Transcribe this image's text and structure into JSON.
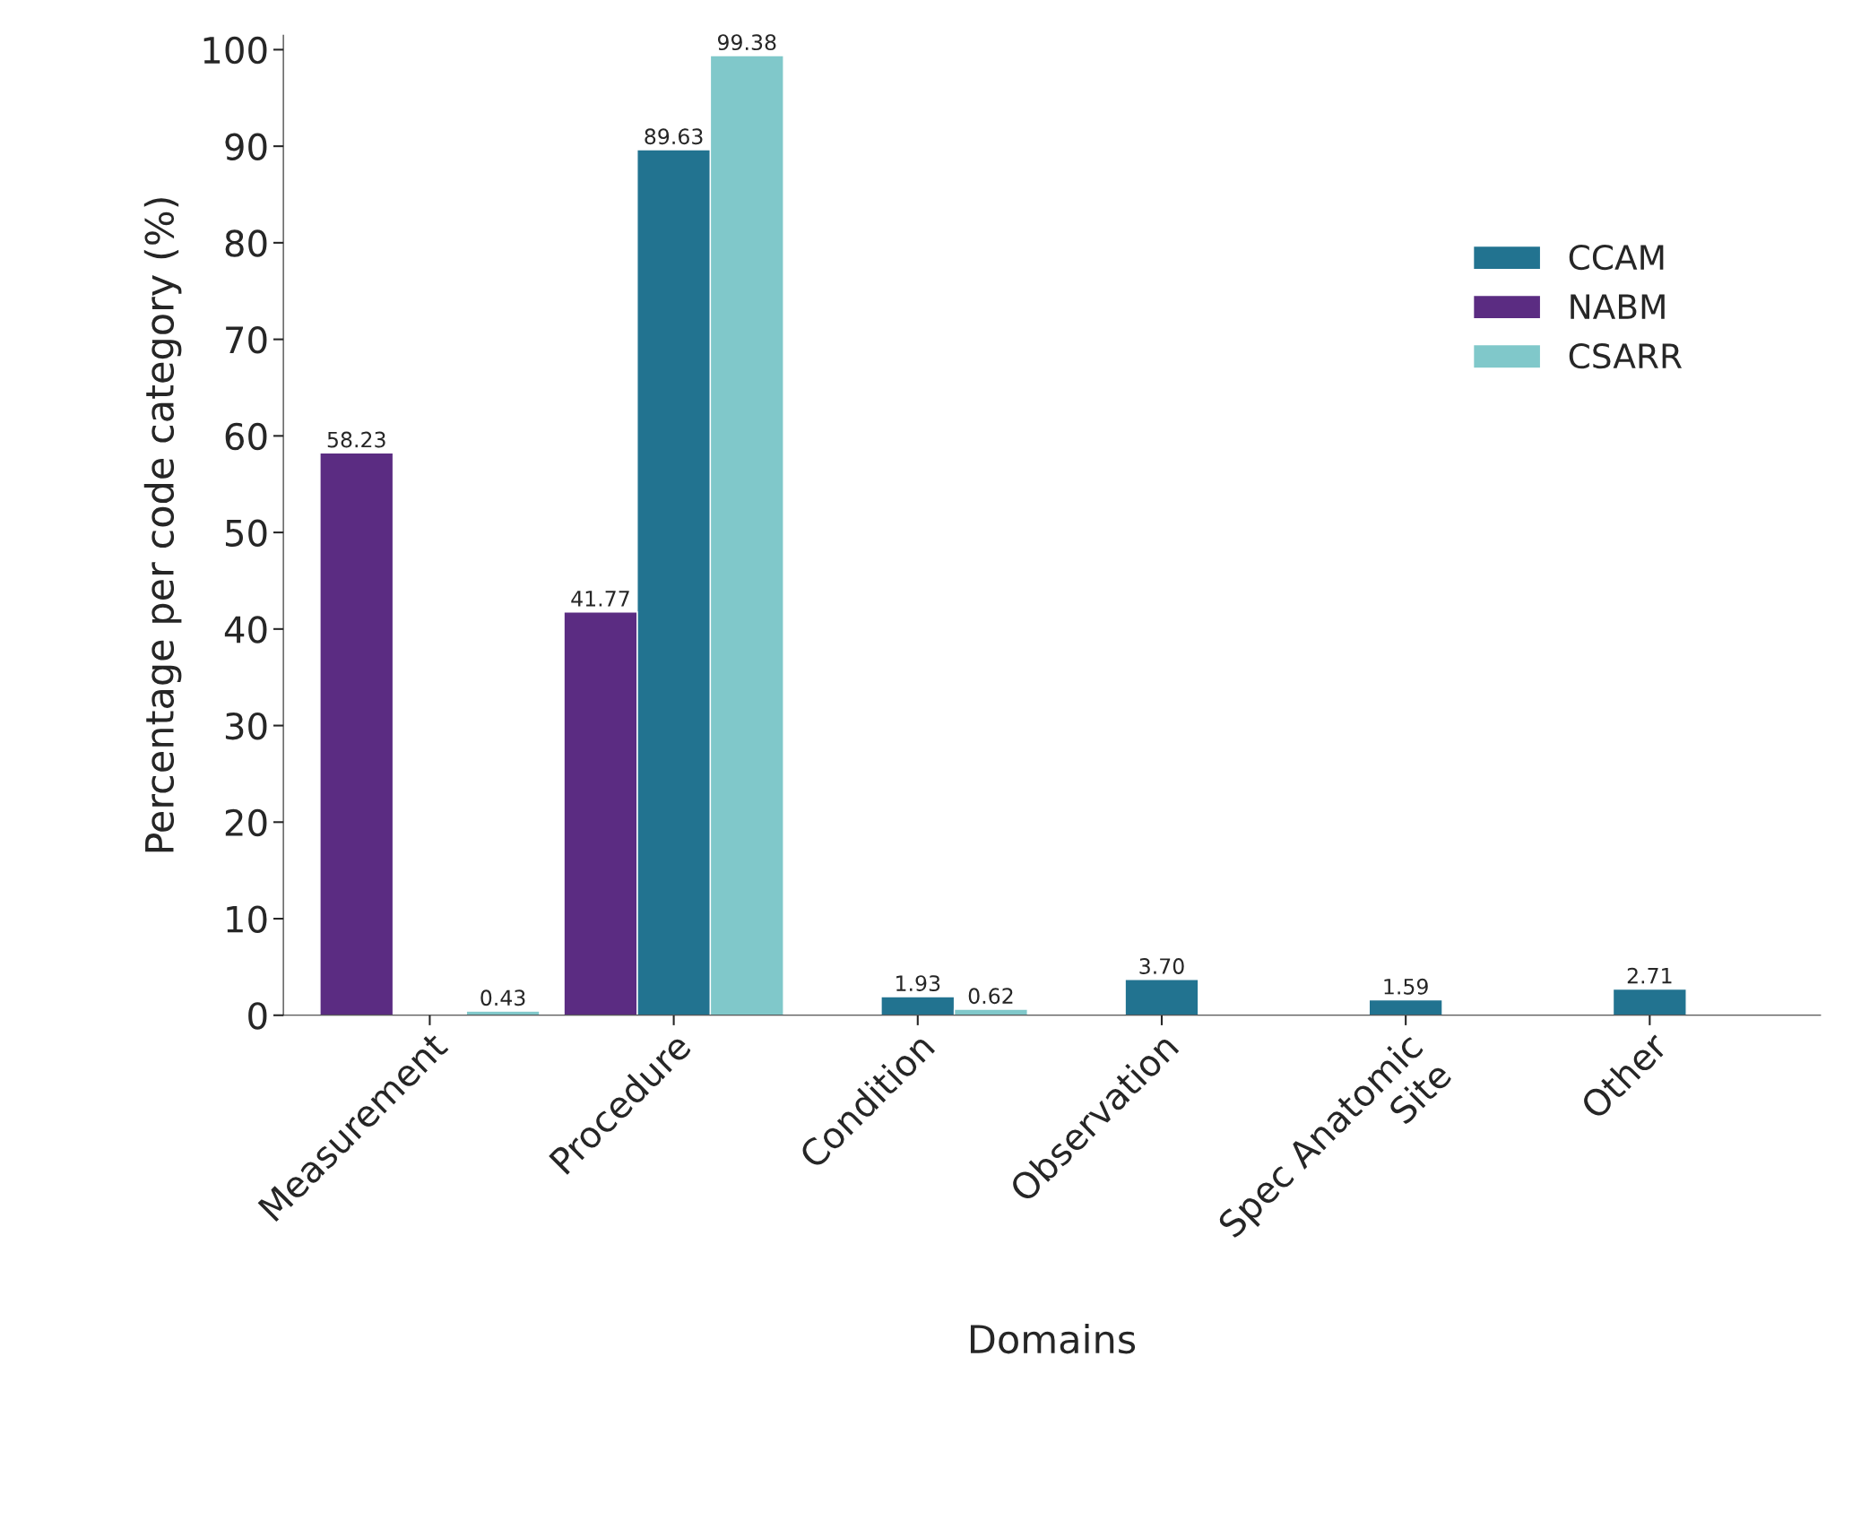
{
  "chart_data": {
    "type": "bar",
    "xlabel": "Domains",
    "ylabel": "Percentage per code category (%)",
    "categories": [
      "Measurement",
      "Procedure",
      "Condition",
      "Observation",
      "Spec Anatomic\nSite",
      "Other"
    ],
    "series": [
      {
        "name": "CCAM",
        "color": "#227390",
        "values": [
          null,
          89.63,
          1.93,
          3.7,
          1.59,
          2.71
        ],
        "value_labels": [
          null,
          "89.63",
          "1.93",
          "3.70",
          "1.59",
          "2.71"
        ]
      },
      {
        "name": "NABM",
        "color": "#5b2c82",
        "values": [
          58.23,
          41.77,
          null,
          null,
          null,
          null
        ],
        "value_labels": [
          "58.23",
          "41.77",
          null,
          null,
          null,
          null
        ]
      },
      {
        "name": "CSARR",
        "color": "#80c8ca",
        "values": [
          0.43,
          99.38,
          0.62,
          null,
          null,
          null
        ],
        "value_labels": [
          "0.43",
          "99.38",
          "0.62",
          null,
          null,
          null
        ]
      }
    ],
    "ylim": [
      0,
      101.5
    ],
    "yticks": [
      0,
      10,
      20,
      30,
      40,
      50,
      60,
      70,
      80,
      90,
      100
    ],
    "grid": false,
    "legend": "right"
  }
}
